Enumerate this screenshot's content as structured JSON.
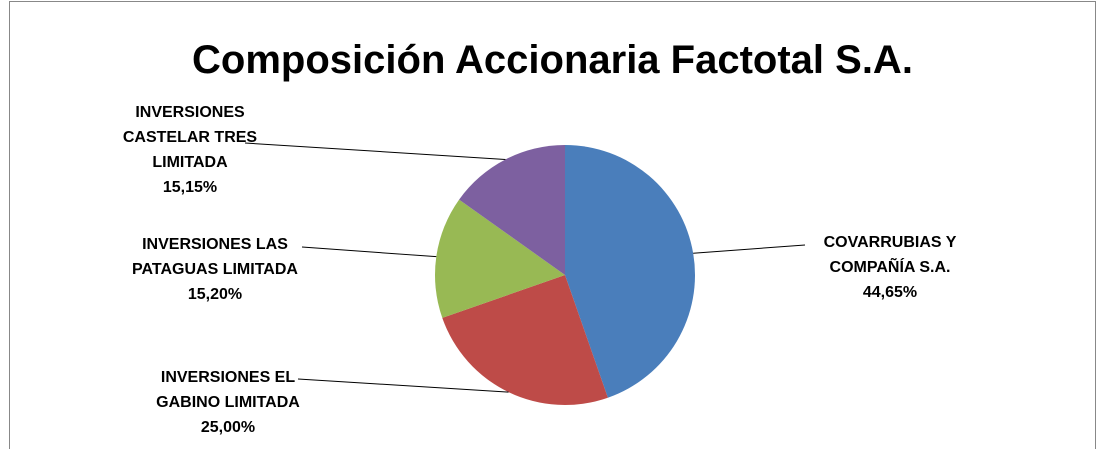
{
  "chart_data": {
    "type": "pie",
    "title": "Composición Accionaria Factotal S.A.",
    "categories": [
      "COVARRUBIAS Y COMPAÑÍA S.A.",
      "INVERSIONES EL GABINO LIMITADA",
      "INVERSIONES LAS PATAGUAS LIMITADA",
      "INVERSIONES CASTELAR TRES LIMITADA"
    ],
    "values": [
      44.65,
      25.0,
      15.2,
      15.15
    ],
    "value_labels": [
      "44,65%",
      "25,00%",
      "15,20%",
      "15,15%"
    ],
    "colors": [
      "#4a7ebb",
      "#be4b48",
      "#98b954",
      "#7d60a0"
    ]
  }
}
